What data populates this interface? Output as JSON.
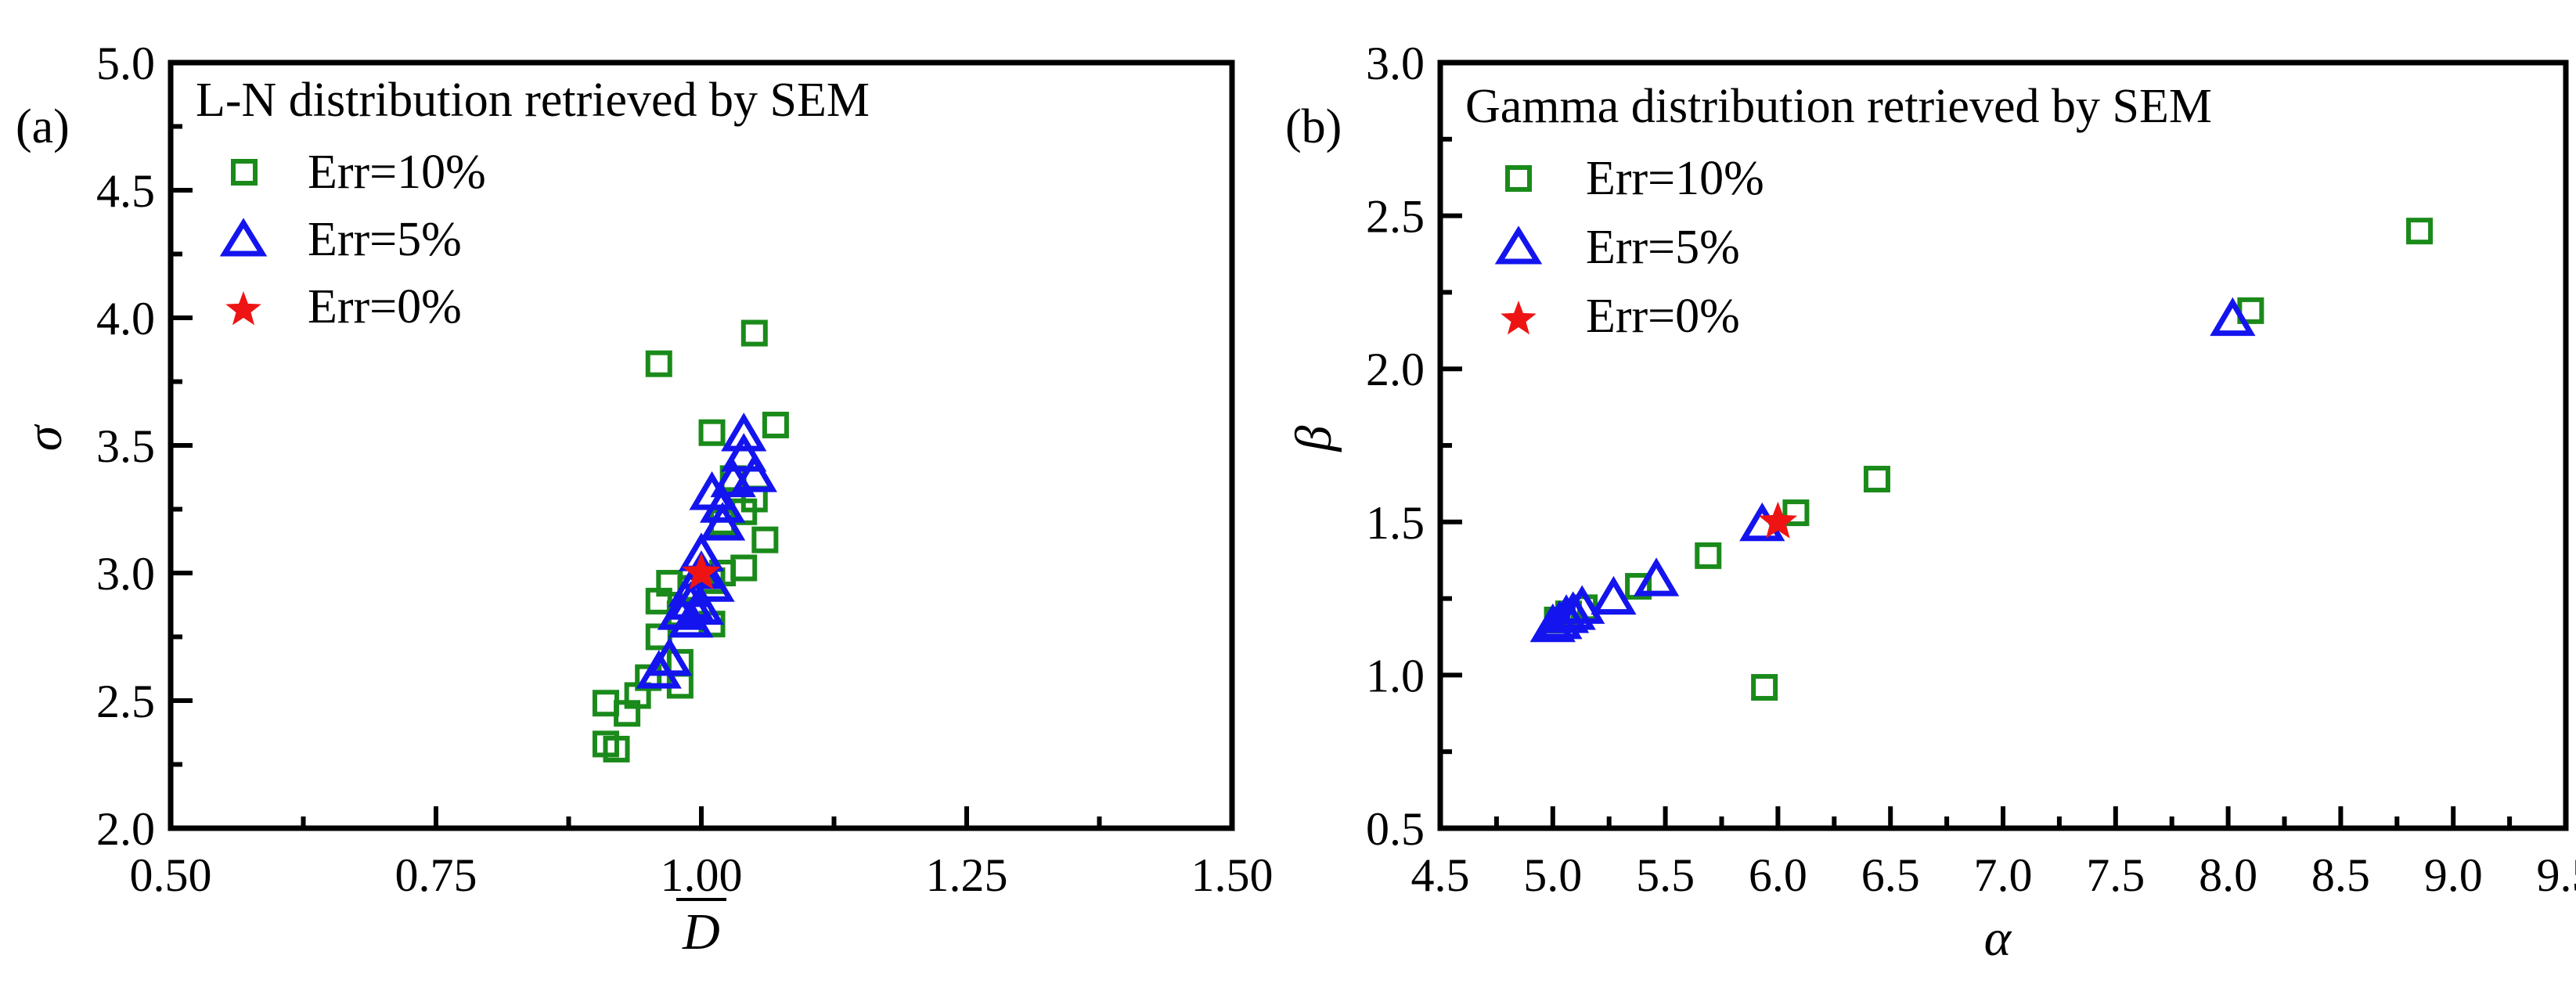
{
  "chart_data": [
    {
      "panel_label": "(a)",
      "type": "scatter",
      "title": "L-N distribution retrieved by SEM",
      "xlabel": "D",
      "xlabel_overline": true,
      "ylabel": "σ",
      "xlim": [
        0.5,
        1.5
      ],
      "ylim": [
        2.0,
        5.0
      ],
      "xticks": [
        "0.50",
        "0.75",
        "1.00",
        "1.25",
        "1.50"
      ],
      "yticks": [
        "2.0",
        "2.5",
        "3.0",
        "3.5",
        "4.0",
        "4.5",
        "5.0"
      ],
      "grid": false,
      "legend_position": "top-left",
      "series": [
        {
          "name": "Err=10%",
          "marker": "square",
          "color": "#1a8a1a",
          "x": [
            0.96,
            1.05,
            1.07,
            1.01,
            1.03,
            1.05,
            1.04,
            1.02,
            1.06,
            1.04,
            1.02,
            1.01,
            0.99,
            0.97,
            0.96,
            0.96,
            0.98,
            1.01,
            0.98,
            0.98,
            0.95,
            0.94,
            0.91,
            0.93,
            0.91,
            0.92
          ],
          "y": [
            3.82,
            3.94,
            3.58,
            3.55,
            3.37,
            3.29,
            3.24,
            3.2,
            3.13,
            3.02,
            3.0,
            2.97,
            2.94,
            2.96,
            2.89,
            2.75,
            2.84,
            2.8,
            2.65,
            2.56,
            2.59,
            2.52,
            2.49,
            2.45,
            2.33,
            2.31
          ]
        },
        {
          "name": "Err=5%",
          "marker": "triangle",
          "color": "#1414ee",
          "x": [
            1.04,
            1.04,
            1.05,
            1.03,
            1.01,
            1.02,
            1.02,
            1.0,
            1.0,
            1.01,
            0.99,
            0.99,
            1.0,
            0.98,
            0.99,
            0.97,
            0.96
          ],
          "y": [
            3.54,
            3.46,
            3.38,
            3.36,
            3.31,
            3.26,
            3.19,
            3.07,
            3.0,
            2.95,
            2.93,
            2.88,
            2.86,
            2.84,
            2.81,
            2.66,
            2.61
          ]
        },
        {
          "name": "Err=0%",
          "marker": "star",
          "color": "#ee1414",
          "x": [
            1.0
          ],
          "y": [
            3.0
          ]
        }
      ]
    },
    {
      "panel_label": "(b)",
      "type": "scatter",
      "title": "Gamma distribution retrieved by SEM",
      "xlabel": "α",
      "ylabel": "β",
      "xlim": [
        4.5,
        9.5
      ],
      "ylim": [
        0.5,
        3.0
      ],
      "xticks": [
        "4.5",
        "5.0",
        "5.5",
        "6.0",
        "6.5",
        "7.0",
        "7.5",
        "8.0",
        "8.5",
        "9.0",
        "9.5"
      ],
      "yticks": [
        "0.5",
        "1.0",
        "1.5",
        "2.0",
        "2.5",
        "3.0"
      ],
      "grid": false,
      "legend_position": "top-left",
      "series": [
        {
          "name": "Err=10%",
          "marker": "square",
          "color": "#1a8a1a",
          "x": [
            8.85,
            8.1,
            6.44,
            6.08,
            5.69,
            5.38,
            5.14,
            5.07,
            5.02,
            5.94
          ],
          "y": [
            2.45,
            2.19,
            1.64,
            1.53,
            1.39,
            1.29,
            1.22,
            1.2,
            1.18,
            0.96
          ]
        },
        {
          "name": "Err=5%",
          "marker": "triangle",
          "color": "#1414ee",
          "x": [
            8.02,
            5.93,
            5.46,
            5.27,
            5.13,
            5.09,
            5.06,
            5.03,
            5.0
          ],
          "y": [
            2.16,
            1.49,
            1.31,
            1.25,
            1.22,
            1.2,
            1.19,
            1.17,
            1.16
          ]
        },
        {
          "name": "Err=0%",
          "marker": "star",
          "color": "#ee1414",
          "x": [
            6.0
          ],
          "y": [
            1.5
          ]
        }
      ]
    }
  ]
}
